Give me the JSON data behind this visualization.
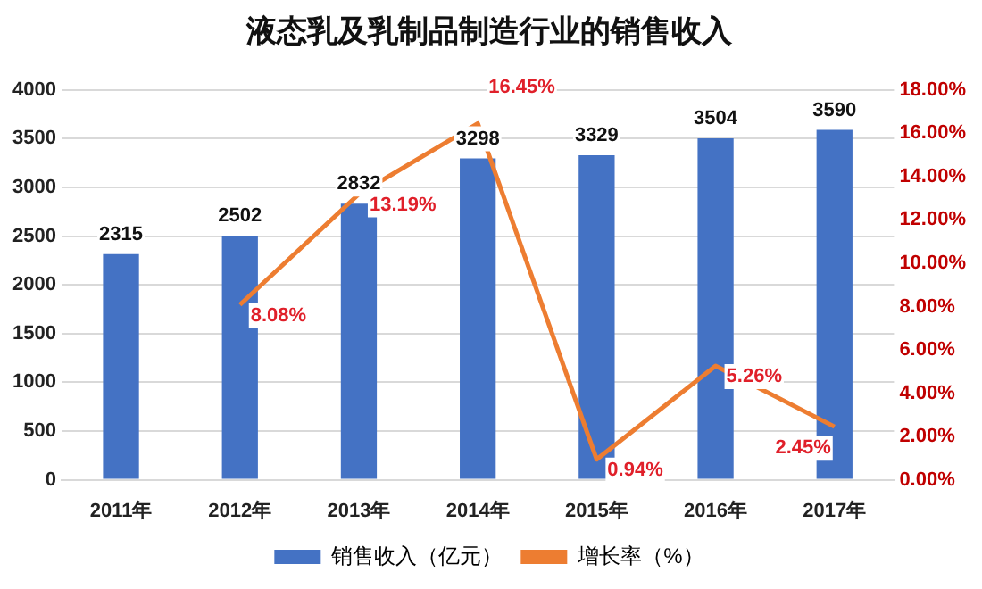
{
  "chart_data": {
    "type": "bar",
    "title": "液态乳及乳制品制造行业的销售收入",
    "categories": [
      "2011年",
      "2012年",
      "2013年",
      "2014年",
      "2015年",
      "2016年",
      "2017年"
    ],
    "series": [
      {
        "name": "销售收入（亿元）",
        "color": "#4472c4",
        "values": [
          2315,
          2502,
          2832,
          3298,
          3329,
          3504,
          3590
        ],
        "value_labels": [
          "2315",
          "2502",
          "2832",
          "3298",
          "3329",
          "3504",
          "3590"
        ]
      },
      {
        "name": "增长率（%）",
        "type": "line",
        "axis": "y2",
        "color": "#ed7d31",
        "values": [
          null,
          8.08,
          13.19,
          16.45,
          0.94,
          5.26,
          2.45
        ],
        "value_labels": [
          null,
          "8.08%",
          "13.19%",
          "16.45%",
          "0.94%",
          "5.26%",
          "2.45%"
        ]
      }
    ],
    "ylim": [
      0,
      4000
    ],
    "yticks": [
      0,
      500,
      1000,
      1500,
      2000,
      2500,
      3000,
      3500,
      4000
    ],
    "y2lim": [
      0,
      18
    ],
    "y2ticks": [
      {
        "value": 0,
        "label": "0.00%"
      },
      {
        "value": 2,
        "label": "2.00%"
      },
      {
        "value": 4,
        "label": "4.00%"
      },
      {
        "value": 6,
        "label": "6.00%"
      },
      {
        "value": 8,
        "label": "8.00%"
      },
      {
        "value": 10,
        "label": "10.00%"
      },
      {
        "value": 12,
        "label": "12.00%"
      },
      {
        "value": 14,
        "label": "14.00%"
      },
      {
        "value": 16,
        "label": "16.00%"
      },
      {
        "value": 18,
        "label": "18.00%"
      }
    ],
    "grid": "y",
    "legend": "bottom",
    "marker": "none",
    "line_style": "solid"
  }
}
